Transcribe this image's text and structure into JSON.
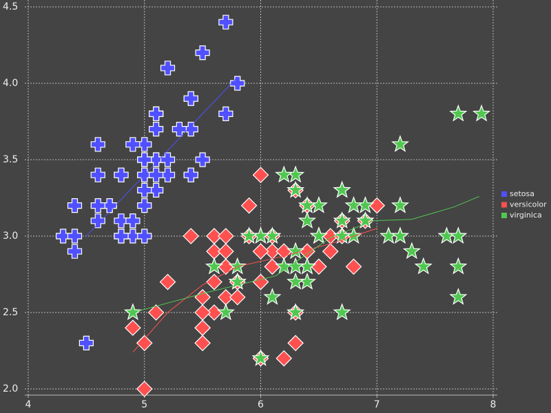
{
  "chart_data": {
    "type": "scatter",
    "xlim": [
      4,
      8
    ],
    "ylim": [
      2,
      4.5
    ],
    "xticks": [
      4,
      5,
      6,
      7,
      8
    ],
    "yticks": [
      {
        "value": 2,
        "label": "2.0"
      },
      2.5,
      {
        "value": 3,
        "label": "3.0"
      },
      3.5,
      {
        "value": 4,
        "label": "4.0"
      },
      4.5
    ],
    "grid": true,
    "legend": "right",
    "series": [
      {
        "name": "setosa",
        "color": "#5050ff",
        "marker": "plus",
        "x": [
          5.1,
          4.9,
          4.7,
          4.6,
          5.0,
          5.4,
          4.6,
          5.0,
          4.4,
          4.9,
          5.4,
          4.8,
          4.8,
          4.3,
          5.8,
          5.7,
          5.4,
          5.1,
          5.7,
          5.1,
          5.4,
          5.1,
          4.6,
          5.1,
          4.8,
          5.0,
          5.0,
          5.2,
          5.2,
          4.7,
          4.8,
          5.4,
          5.2,
          5.5,
          4.9,
          5.0,
          5.5,
          4.9,
          4.4,
          5.1,
          5.0,
          4.5,
          4.4,
          5.0,
          5.1,
          4.8,
          5.1,
          4.6,
          5.3,
          5.0
        ],
        "y": [
          3.5,
          3.0,
          3.2,
          3.1,
          3.6,
          3.9,
          3.4,
          3.4,
          2.9,
          3.1,
          3.7,
          3.4,
          3.0,
          3.0,
          4.0,
          4.4,
          3.9,
          3.5,
          3.8,
          3.8,
          3.4,
          3.7,
          3.6,
          3.3,
          3.4,
          3.0,
          3.4,
          3.5,
          3.4,
          3.2,
          3.1,
          3.4,
          4.1,
          4.2,
          3.1,
          3.2,
          3.5,
          3.6,
          3.0,
          3.4,
          3.5,
          2.3,
          3.2,
          3.5,
          3.8,
          3.0,
          3.8,
          3.2,
          3.7,
          3.3
        ],
        "fit_x": [
          4.5,
          5.8
        ],
        "fit_y": [
          3.0,
          4.04
        ]
      },
      {
        "name": "versicolor",
        "color": "#ff5050",
        "marker": "diamond",
        "x": [
          7.0,
          6.4,
          6.9,
          5.5,
          6.5,
          5.7,
          6.3,
          4.9,
          6.6,
          5.2,
          5.0,
          5.9,
          6.0,
          6.1,
          5.6,
          6.7,
          5.6,
          5.8,
          6.2,
          5.6,
          5.9,
          6.1,
          6.3,
          6.1,
          6.4,
          6.6,
          6.8,
          6.7,
          6.0,
          5.7,
          5.5,
          5.5,
          5.8,
          6.0,
          5.4,
          6.0,
          6.7,
          6.3,
          5.6,
          5.5,
          5.5,
          6.1,
          5.8,
          5.0,
          5.6,
          5.7,
          5.7,
          6.2,
          5.1,
          5.7
        ],
        "y": [
          3.2,
          3.2,
          3.1,
          2.3,
          2.8,
          2.8,
          3.3,
          2.4,
          2.9,
          2.7,
          2.0,
          3.0,
          2.2,
          2.9,
          2.9,
          3.1,
          3.0,
          2.7,
          2.2,
          2.5,
          3.2,
          2.8,
          2.5,
          2.8,
          2.9,
          3.0,
          2.8,
          3.0,
          2.9,
          2.6,
          2.4,
          2.4,
          2.7,
          2.7,
          3.0,
          3.4,
          3.1,
          2.3,
          3.0,
          2.5,
          2.6,
          3.0,
          2.6,
          2.3,
          2.7,
          3.0,
          2.9,
          2.9,
          2.5,
          2.8
        ],
        "fit_x": [
          4.9,
          5.2,
          5.5,
          5.8,
          6.2,
          6.6,
          7.0
        ],
        "fit_y": [
          2.24,
          2.5,
          2.68,
          2.8,
          2.87,
          2.95,
          3.05
        ]
      },
      {
        "name": "virginica",
        "color": "#50c850",
        "marker": "star",
        "x": [
          6.3,
          5.8,
          7.1,
          6.3,
          6.5,
          7.6,
          4.9,
          7.3,
          6.7,
          7.2,
          6.5,
          6.4,
          6.8,
          5.7,
          5.8,
          6.4,
          6.5,
          7.7,
          7.7,
          6.0,
          6.9,
          5.6,
          7.7,
          6.3,
          6.7,
          7.2,
          6.2,
          6.1,
          6.4,
          7.2,
          7.4,
          7.9,
          6.4,
          6.3,
          6.1,
          7.7,
          6.3,
          6.4,
          6.0,
          6.9,
          6.7,
          6.9,
          5.8,
          6.8,
          6.7,
          6.7,
          6.3,
          6.5,
          6.2,
          5.9
        ],
        "y": [
          3.3,
          2.7,
          3.0,
          2.9,
          3.0,
          3.0,
          2.5,
          2.9,
          2.5,
          3.6,
          3.2,
          2.7,
          3.0,
          2.5,
          2.8,
          3.2,
          3.0,
          3.8,
          2.6,
          2.2,
          3.2,
          2.8,
          2.8,
          2.7,
          3.3,
          3.2,
          2.8,
          3.0,
          2.8,
          3.0,
          2.8,
          3.8,
          2.8,
          2.8,
          2.6,
          3.0,
          3.4,
          3.1,
          3.0,
          3.1,
          3.1,
          3.1,
          2.7,
          3.2,
          3.3,
          3.0,
          2.5,
          3.0,
          3.4,
          3.0
        ],
        "fit_x": [
          4.9,
          5.53,
          6.13,
          6.6,
          6.97,
          7.3,
          7.66,
          7.88
        ],
        "fit_y": [
          2.5,
          2.63,
          2.74,
          2.99,
          3.1,
          3.11,
          3.19,
          3.26
        ]
      }
    ]
  }
}
